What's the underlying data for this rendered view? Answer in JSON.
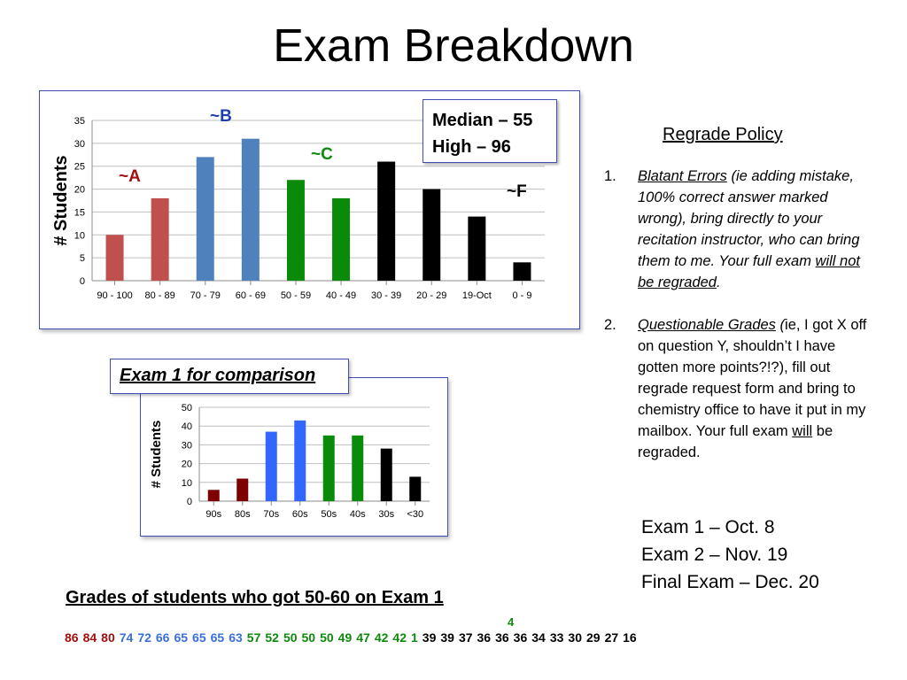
{
  "slide": {
    "title": "Exam Breakdown"
  },
  "stats_box": {
    "median": "Median – 55",
    "high": "High – 96"
  },
  "comparison_label": "Exam 1 for comparison",
  "grade_labels": {
    "a": "~A",
    "b": "~B",
    "c": "~C",
    "f": "~F",
    "colors": {
      "a": "#a01010",
      "b": "#1f3fb0",
      "c": "#0c8a0c",
      "f": "#000000"
    }
  },
  "regrade": {
    "title": "Regrade Policy",
    "items": [
      {
        "num": "1.",
        "heading": "Blatant Errors",
        "text1": " (ie adding mistake, 100% correct answer marked wrong), bring directly to your recitation instructor, who can bring them to me. Your full exam ",
        "emph": "will not ",
        "text2": "be regraded",
        "end": "."
      },
      {
        "num": "2.",
        "heading": "Questionable Grades",
        "text1": " (",
        "text1b": "ie, I got X off on question Y, shouldn’t I have gotten more points?!?), fill out regrade request form and bring to chemistry office to have it put in my mailbox.  Your full exam ",
        "emph": "will",
        "text2": " be regraded."
      }
    ]
  },
  "exam_dates": [
    "Exam 1 – Oct. 8",
    "Exam 2 – Nov. 19",
    "Final Exam – Dec. 20"
  ],
  "grades_section": {
    "title": "Grades of students who got 50-60 on Exam 1",
    "superscript": "4",
    "grades": [
      {
        "v": "86",
        "c": "#a01010"
      },
      {
        "v": "84",
        "c": "#a01010"
      },
      {
        "v": "80",
        "c": "#a01010"
      },
      {
        "v": "74",
        "c": "#3a6fd8"
      },
      {
        "v": "72",
        "c": "#3a6fd8"
      },
      {
        "v": "66",
        "c": "#3a6fd8"
      },
      {
        "v": "65",
        "c": "#3a6fd8"
      },
      {
        "v": "65",
        "c": "#3a6fd8"
      },
      {
        "v": "65",
        "c": "#3a6fd8"
      },
      {
        "v": "63",
        "c": "#3a6fd8"
      },
      {
        "v": "57",
        "c": "#0c8a0c"
      },
      {
        "v": "52",
        "c": "#0c8a0c"
      },
      {
        "v": "50",
        "c": "#0c8a0c"
      },
      {
        "v": "50",
        "c": "#0c8a0c"
      },
      {
        "v": "50",
        "c": "#0c8a0c"
      },
      {
        "v": "49",
        "c": "#0c8a0c"
      },
      {
        "v": "47",
        "c": "#0c8a0c"
      },
      {
        "v": "42",
        "c": "#0c8a0c"
      },
      {
        "v": "42",
        "c": "#0c8a0c"
      },
      {
        "v": "1",
        "c": "#0c8a0c"
      },
      {
        "v": "39",
        "c": "#000000"
      },
      {
        "v": "39",
        "c": "#000000"
      },
      {
        "v": "37",
        "c": "#000000"
      },
      {
        "v": "36",
        "c": "#000000"
      },
      {
        "v": "36",
        "c": "#000000"
      },
      {
        "v": "36",
        "c": "#000000"
      },
      {
        "v": "34",
        "c": "#000000"
      },
      {
        "v": "33",
        "c": "#000000"
      },
      {
        "v": "30",
        "c": "#000000"
      },
      {
        "v": "29",
        "c": "#000000"
      },
      {
        "v": "27",
        "c": "#000000"
      },
      {
        "v": "16",
        "c": "#000000"
      }
    ]
  },
  "chart_data": [
    {
      "type": "bar",
      "categories": [
        "90 - 100",
        "80 - 89",
        "70 - 79",
        "60 - 69",
        "50 - 59",
        "40 - 49",
        "30 - 39",
        "20 - 29",
        "19-Oct",
        "0 - 9"
      ],
      "values": [
        10,
        18,
        27,
        31,
        22,
        18,
        26,
        20,
        14,
        4
      ],
      "colors": [
        "#c0504d",
        "#c0504d",
        "#4f81bd",
        "#4f81bd",
        "#0a8a0a",
        "#0a8a0a",
        "#000000",
        "#000000",
        "#000000",
        "#000000"
      ],
      "ylabel": "# Students",
      "ylim": [
        0,
        35
      ],
      "yticks": [
        0,
        5,
        10,
        15,
        20,
        25,
        30,
        35
      ],
      "grid": true
    },
    {
      "type": "bar",
      "categories": [
        "90s",
        "80s",
        "70s",
        "60s",
        "50s",
        "40s",
        "30s",
        "<30"
      ],
      "values": [
        6,
        12,
        37,
        43,
        35,
        35,
        28,
        13
      ],
      "colors": [
        "#7f0000",
        "#7f0000",
        "#3366ff",
        "#3366ff",
        "#0a8a0a",
        "#0a8a0a",
        "#000000",
        "#000000"
      ],
      "ylabel": "# Students",
      "ylim": [
        0,
        50
      ],
      "yticks": [
        0,
        10,
        20,
        30,
        40,
        50
      ],
      "grid": true
    }
  ]
}
